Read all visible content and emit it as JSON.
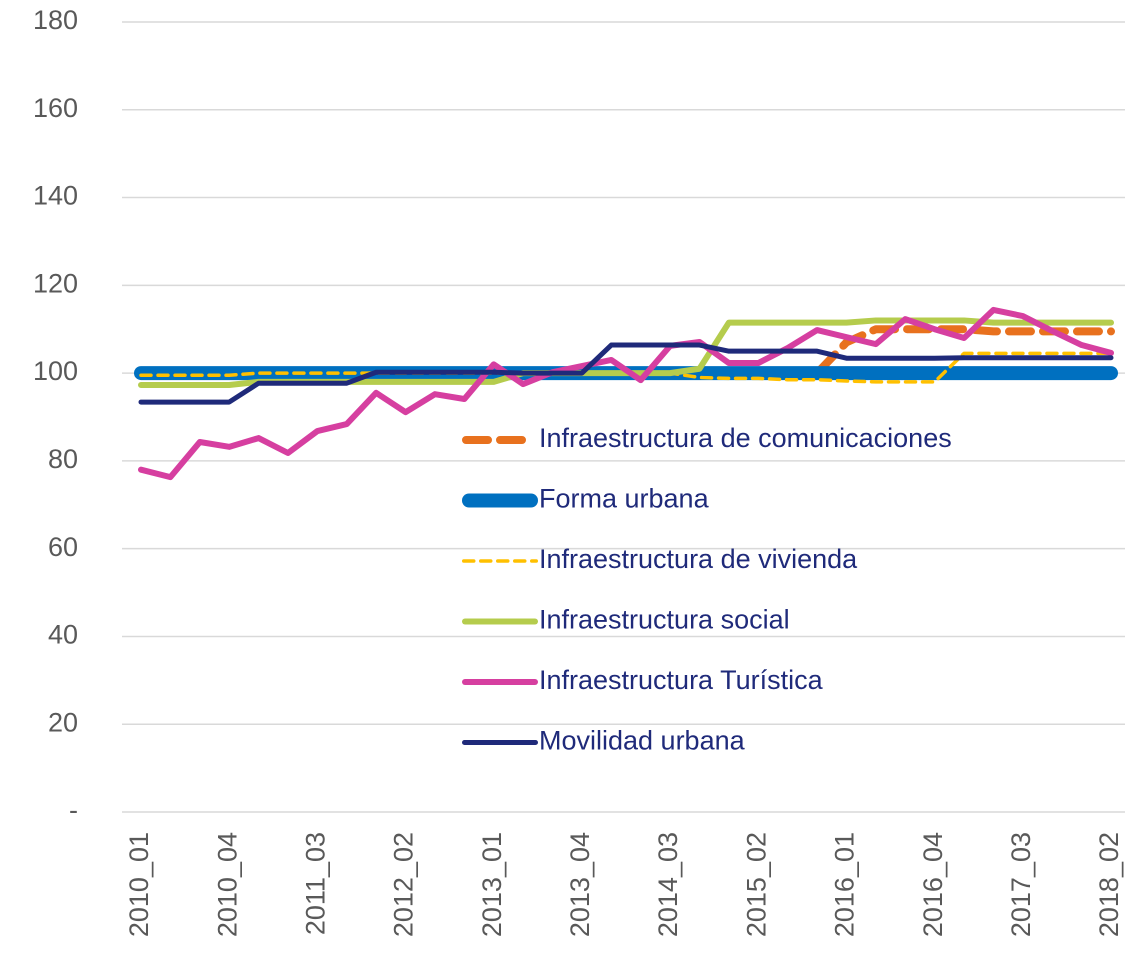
{
  "chart_data": {
    "type": "line",
    "categories": [
      "2010_01",
      null,
      null,
      "2010_04",
      null,
      null,
      "2011_03",
      null,
      null,
      "2012_02",
      null,
      null,
      "2013_01",
      null,
      null,
      "2013_04",
      null,
      null,
      "2014_03",
      null,
      null,
      "2015_02",
      null,
      null,
      "2016_01",
      null,
      null,
      "2016_04",
      null,
      null,
      "2017_03",
      null,
      null,
      "2018_02"
    ],
    "series": [
      {
        "name": "Infraestructura de comunicaciones",
        "color": "#e8711e",
        "dashed": true,
        "values": [
          100,
          100,
          100,
          100,
          100,
          100,
          100,
          100,
          100,
          100,
          100,
          100,
          100,
          100,
          100,
          100,
          100,
          100,
          100,
          100,
          100,
          100,
          100,
          100,
          107,
          110,
          110,
          110,
          110,
          109.5,
          109.5,
          109.5,
          109.5,
          109.5
        ]
      },
      {
        "name": "Forma urbana",
        "color": "#0070c0",
        "dashed": false,
        "values": [
          100,
          100,
          100,
          100,
          100,
          100,
          100,
          100,
          100,
          100,
          100,
          100,
          100,
          100,
          100,
          100,
          100,
          100,
          100,
          100,
          100,
          100,
          100,
          100,
          100,
          100,
          100,
          100,
          100,
          100,
          100,
          100,
          100,
          100
        ]
      },
      {
        "name": "Infraestructura de vivienda",
        "color": "#ffc000",
        "dashed": true,
        "values": [
          99.5,
          99.5,
          99.5,
          99.5,
          100,
          100,
          100,
          100,
          100,
          100,
          100,
          100,
          100,
          100,
          100,
          100,
          100,
          100,
          100,
          99,
          98.8,
          98.8,
          98.5,
          98.5,
          98.2,
          98,
          98,
          98,
          104.5,
          104.5,
          104.5,
          104.5,
          104.5,
          104.5
        ]
      },
      {
        "name": "Infraestructura social",
        "color": "#b5cc4d",
        "dashed": false,
        "values": [
          97.3,
          97.3,
          97.3,
          97.3,
          98,
          98,
          98,
          98,
          98,
          98,
          98,
          98,
          98,
          100,
          100,
          100,
          100,
          100,
          100,
          101,
          111.5,
          111.5,
          111.5,
          111.5,
          111.5,
          112,
          112,
          112,
          112,
          111.5,
          111.5,
          111.5,
          111.5,
          111.5
        ]
      },
      {
        "name": "Infraestructura Turística",
        "color": "#d63fa0",
        "dashed": false,
        "values": [
          78,
          76.3,
          84.3,
          83.2,
          85.2,
          81.8,
          86.8,
          88.4,
          95.5,
          91.1,
          95.2,
          94.1,
          102,
          97.5,
          100.2,
          101.6,
          103,
          98.4,
          106.2,
          107.1,
          102.3,
          102.3,
          105.7,
          109.8,
          108.2,
          106.6,
          112.3,
          110,
          108,
          114.4,
          113,
          109.6,
          106.4,
          104.6
        ]
      },
      {
        "name": "Movilidad urbana",
        "color": "#1f2a7a",
        "dashed": false,
        "values": [
          93.4,
          93.4,
          93.4,
          93.4,
          97.7,
          97.7,
          97.7,
          97.7,
          100.2,
          100.2,
          100.2,
          100.2,
          100.2,
          100,
          100,
          100,
          106.4,
          106.4,
          106.4,
          106.4,
          105,
          105,
          105,
          105,
          103.4,
          103.4,
          103.4,
          103.4,
          103.5,
          103.5,
          103.5,
          103.5,
          103.5,
          103.5
        ]
      }
    ],
    "ylim": [
      0,
      180
    ],
    "yticks": [
      {
        "value": 0,
        "label": "-"
      },
      20,
      40,
      60,
      80,
      100,
      120,
      140,
      160,
      180
    ],
    "grid": true,
    "legend": "lower right"
  }
}
